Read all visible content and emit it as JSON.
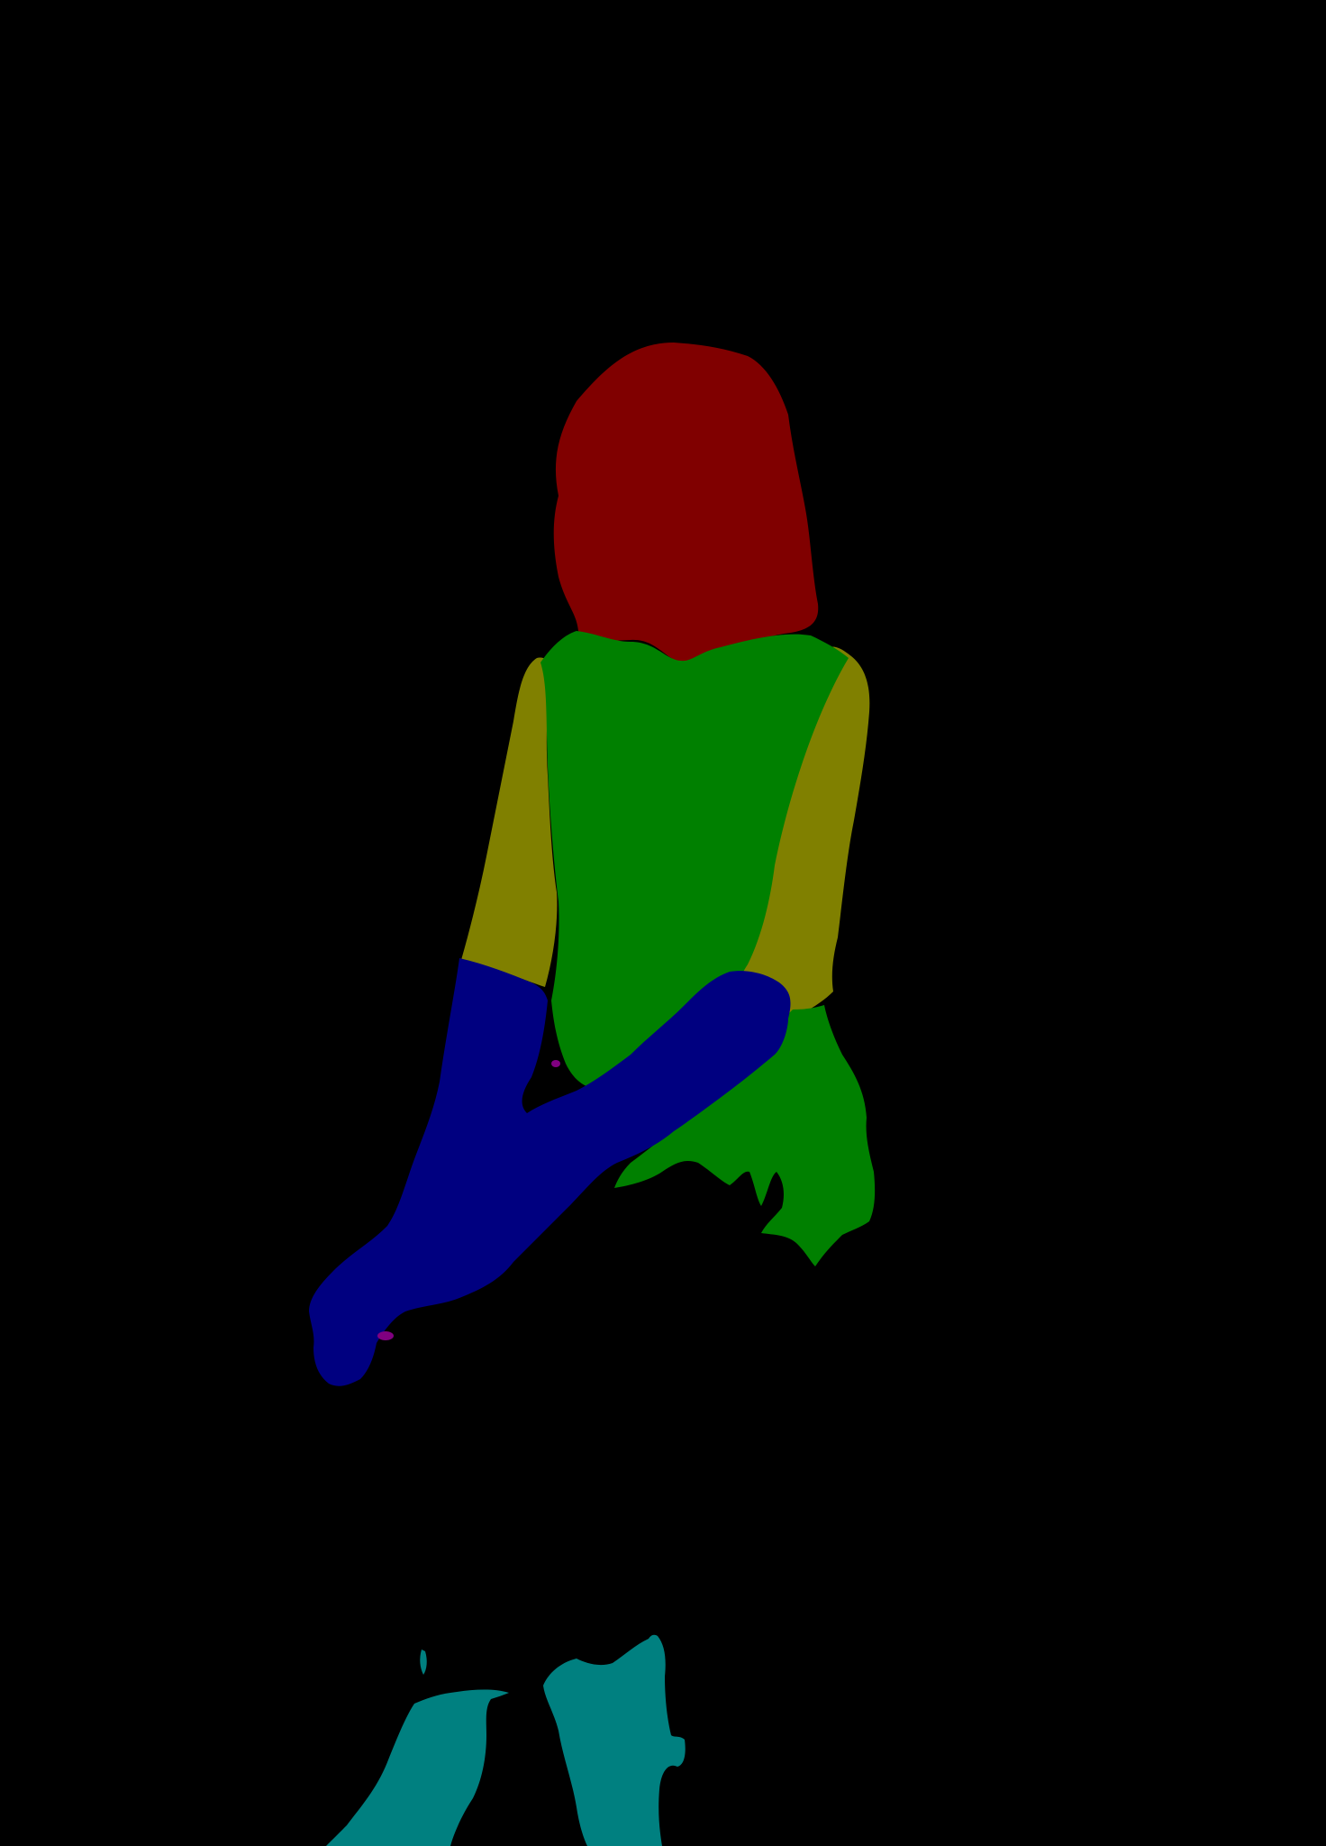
{
  "background": "#000000",
  "segments": [
    {
      "name": "hair",
      "color": "#800000"
    },
    {
      "name": "torso",
      "color": "#008000"
    },
    {
      "name": "arms",
      "color": "#808000"
    },
    {
      "name": "sleeve",
      "color": "#000080"
    },
    {
      "name": "legs",
      "color": "#008080"
    },
    {
      "name": "accessory",
      "color": "#800080"
    }
  ]
}
